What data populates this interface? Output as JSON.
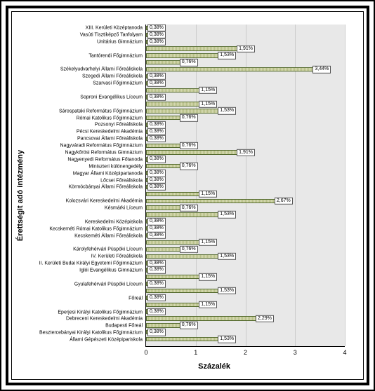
{
  "chart": {
    "type": "bar-horizontal",
    "y_axis_title": "Érettségit adó intézmény",
    "x_axis_title": "Százalék",
    "xlim": [
      0,
      4
    ],
    "xticks": [
      0,
      1,
      2,
      3,
      4
    ],
    "bar_fill": "#c4c89a",
    "bar_border": "#556b2f",
    "plot_background": "#e8e8e8",
    "frame_background": "#ffffff",
    "label_fontsize_pt": 7,
    "axis_title_fontsize_pt": 11,
    "categories": [
      {
        "name": "XIII. Kerületi Középtanoda",
        "value": 0.38,
        "label": "0,38%"
      },
      {
        "name": "Vasúti Tisztiképző Tanfolyam",
        "value": 0.38,
        "label": "0,38%"
      },
      {
        "name": "Unitárius Gimnázium",
        "value": 0.38,
        "label": "0,38%"
      },
      {
        "name": "",
        "value": 1.91,
        "label": "1,91%"
      },
      {
        "name": "Tantórendi Főgimnázium",
        "value": 1.53,
        "label": "1,53%"
      },
      {
        "name": "",
        "value": 0.76,
        "label": "0,76%"
      },
      {
        "name": "Székelyudvarhelyi Állami Főreáliskola",
        "value": 3.44,
        "label": "3,44%"
      },
      {
        "name": "Szegedi Állami Főreáliskola",
        "value": 0.38,
        "label": "0,38%"
      },
      {
        "name": "Szarvasi Főgimnázium",
        "value": 0.38,
        "label": "0,38%"
      },
      {
        "name": "",
        "value": 1.15,
        "label": "1,15%"
      },
      {
        "name": "Soproni Evangélikus Líceum",
        "value": 0.38,
        "label": "0,38%"
      },
      {
        "name": "",
        "value": 1.15,
        "label": "1,15%"
      },
      {
        "name": "Sárospataki Református Főgimnázium",
        "value": 1.53,
        "label": "1,53%"
      },
      {
        "name": "Római Katolikus Főgimnázium",
        "value": 0.76,
        "label": "0,76%"
      },
      {
        "name": "Pozsonyi Főreáliskola",
        "value": 0.38,
        "label": "0,38%"
      },
      {
        "name": "Pécsi Kereskedelmi Akadémia",
        "value": 0.38,
        "label": "0,38%"
      },
      {
        "name": "Pancsovai Állami Főreáliskola",
        "value": 0.38,
        "label": "0,38%"
      },
      {
        "name": "Nagyváradi Református Főgimnázium",
        "value": 0.76,
        "label": "0,76%"
      },
      {
        "name": "Nagykőrösi Református Gimnázium",
        "value": 1.91,
        "label": "1,91%"
      },
      {
        "name": "Nagyenyedi Református Főtanoda",
        "value": 0.38,
        "label": "0,38%"
      },
      {
        "name": "Miniszteri különengedély",
        "value": 0.76,
        "label": "0,76%"
      },
      {
        "name": "Magyar Állami Középipartanoda",
        "value": 0.38,
        "label": "0,38%"
      },
      {
        "name": "Lőcsei Főreáliskola",
        "value": 0.38,
        "label": "0,38%"
      },
      {
        "name": "Körmöcbányai Állami Főreáliskola",
        "value": 0.38,
        "label": "0,38%"
      },
      {
        "name": "",
        "value": 1.15,
        "label": "1,15%"
      },
      {
        "name": "Kolozsvári Kereskedelmi Akadémia",
        "value": 2.67,
        "label": "2,67%"
      },
      {
        "name": "Késmárki Líceum",
        "value": 0.76,
        "label": "0,76%"
      },
      {
        "name": "",
        "value": 1.53,
        "label": "1,53%"
      },
      {
        "name": "Kereskedelmi Középiskola",
        "value": 0.38,
        "label": "0,38%"
      },
      {
        "name": "Kecskeméti Római Katolikus Főgimnázium",
        "value": 0.38,
        "label": "0,38%"
      },
      {
        "name": "Kecskeméti Állami Főreáliskola",
        "value": 0.38,
        "label": "0,38%"
      },
      {
        "name": "",
        "value": 1.15,
        "label": "1,15%"
      },
      {
        "name": "Károlyfehérvári Püspöki Líceum",
        "value": 0.76,
        "label": "0,76%"
      },
      {
        "name": "IV. Kerületi Főreáliskola",
        "value": 1.53,
        "label": "1,53%"
      },
      {
        "name": "II. Kerületi Budai Királyi Egyetemi Főgimnázium",
        "value": 0.38,
        "label": "0,38%"
      },
      {
        "name": "Iglói Evangélikus Gimnázium",
        "value": 0.38,
        "label": "0,38%"
      },
      {
        "name": "",
        "value": 1.15,
        "label": "1,15%"
      },
      {
        "name": "Gyulafehérvári Püspöki Líceum",
        "value": 0.38,
        "label": "0,38%"
      },
      {
        "name": "",
        "value": 1.53,
        "label": "1,53%"
      },
      {
        "name": "Főreál",
        "value": 0.38,
        "label": "0,38%"
      },
      {
        "name": "",
        "value": 1.15,
        "label": "1,15%"
      },
      {
        "name": "Eperjesi Királyi Katolikus Főgimnázium",
        "value": 0.38,
        "label": "0,38%"
      },
      {
        "name": "Debreceni Kereskedelmi Akadémia",
        "value": 2.29,
        "label": "2,29%"
      },
      {
        "name": "Budapesti Főreál",
        "value": 0.76,
        "label": "0,76%"
      },
      {
        "name": "Besztercebányai Királyi Katolikus Főgimnázium",
        "value": 0.38,
        "label": "0,38%"
      },
      {
        "name": "Állami Gépészeti Középipariskola",
        "value": 1.53,
        "label": "1,53%"
      }
    ]
  }
}
